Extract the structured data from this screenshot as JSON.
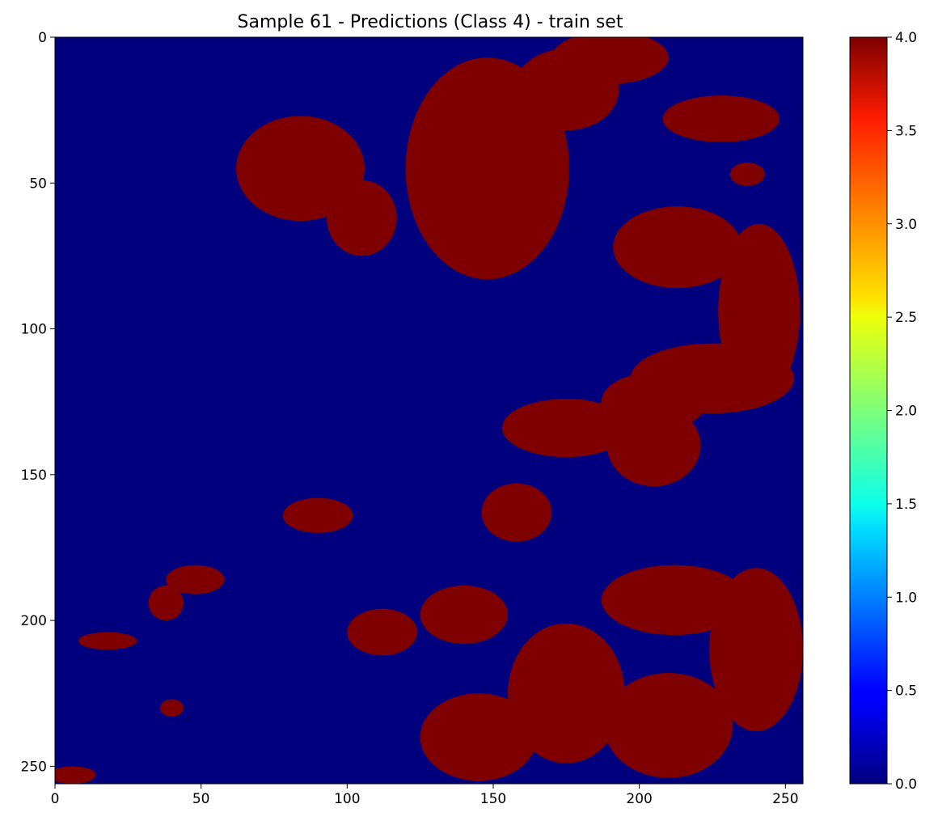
{
  "chart_data": {
    "type": "heatmap",
    "title": "Sample 61 - Predictions (Class 4) - train set",
    "xlabel": "",
    "ylabel": "",
    "x_range": [
      0,
      256
    ],
    "y_range": [
      0,
      256
    ],
    "y_inverted": true,
    "x_ticks": [
      0,
      50,
      100,
      150,
      200,
      250
    ],
    "y_ticks": [
      0,
      50,
      100,
      150,
      200,
      250
    ],
    "x_tick_labels": [
      "0",
      "50",
      "100",
      "150",
      "200",
      "250"
    ],
    "y_tick_labels": [
      "0",
      "50",
      "100",
      "150",
      "200",
      "250"
    ],
    "colormap": "jet",
    "colorbar": {
      "range": [
        0.0,
        4.0
      ],
      "ticks": [
        0.0,
        0.5,
        1.0,
        1.5,
        2.0,
        2.5,
        3.0,
        3.5,
        4.0
      ],
      "tick_labels": [
        "0.0",
        "0.5",
        "1.0",
        "1.5",
        "2.0",
        "2.5",
        "3.0",
        "3.5",
        "4.0"
      ]
    },
    "grid": false,
    "background_value": 0,
    "class_value": 4,
    "speckle_value": 1,
    "regions_value_4": [
      {
        "center": [
          84,
          45
        ],
        "radii": [
          22,
          18
        ]
      },
      {
        "center": [
          105,
          62
        ],
        "radii": [
          12,
          13
        ]
      },
      {
        "center": [
          148,
          45
        ],
        "radii": [
          28,
          38
        ]
      },
      {
        "center": [
          175,
          18
        ],
        "radii": [
          18,
          14
        ]
      },
      {
        "center": [
          190,
          7
        ],
        "radii": [
          20,
          9
        ]
      },
      {
        "center": [
          228,
          28
        ],
        "radii": [
          20,
          8
        ]
      },
      {
        "center": [
          237,
          47
        ],
        "radii": [
          6,
          4
        ]
      },
      {
        "center": [
          213,
          72
        ],
        "radii": [
          22,
          14
        ]
      },
      {
        "center": [
          241,
          94
        ],
        "radii": [
          14,
          30
        ]
      },
      {
        "center": [
          225,
          117
        ],
        "radii": [
          28,
          12
        ]
      },
      {
        "center": [
          205,
          125
        ],
        "radii": [
          18,
          10
        ]
      },
      {
        "center": [
          175,
          134
        ],
        "radii": [
          22,
          10
        ]
      },
      {
        "center": [
          205,
          140
        ],
        "radii": [
          16,
          14
        ]
      },
      {
        "center": [
          158,
          163
        ],
        "radii": [
          12,
          10
        ]
      },
      {
        "center": [
          90,
          164
        ],
        "radii": [
          12,
          6
        ]
      },
      {
        "center": [
          48,
          186
        ],
        "radii": [
          10,
          5
        ]
      },
      {
        "center": [
          38,
          194
        ],
        "radii": [
          6,
          6
        ]
      },
      {
        "center": [
          18,
          207
        ],
        "radii": [
          10,
          3
        ]
      },
      {
        "center": [
          112,
          204
        ],
        "radii": [
          12,
          8
        ]
      },
      {
        "center": [
          140,
          198
        ],
        "radii": [
          15,
          10
        ]
      },
      {
        "center": [
          212,
          193
        ],
        "radii": [
          25,
          12
        ]
      },
      {
        "center": [
          240,
          210
        ],
        "radii": [
          16,
          28
        ]
      },
      {
        "center": [
          175,
          225
        ],
        "radii": [
          20,
          24
        ]
      },
      {
        "center": [
          210,
          236
        ],
        "radii": [
          22,
          18
        ]
      },
      {
        "center": [
          145,
          240
        ],
        "radii": [
          20,
          15
        ]
      },
      {
        "center": [
          6,
          253
        ],
        "radii": [
          8,
          3
        ]
      },
      {
        "center": [
          40,
          230
        ],
        "radii": [
          4,
          3
        ]
      }
    ]
  }
}
